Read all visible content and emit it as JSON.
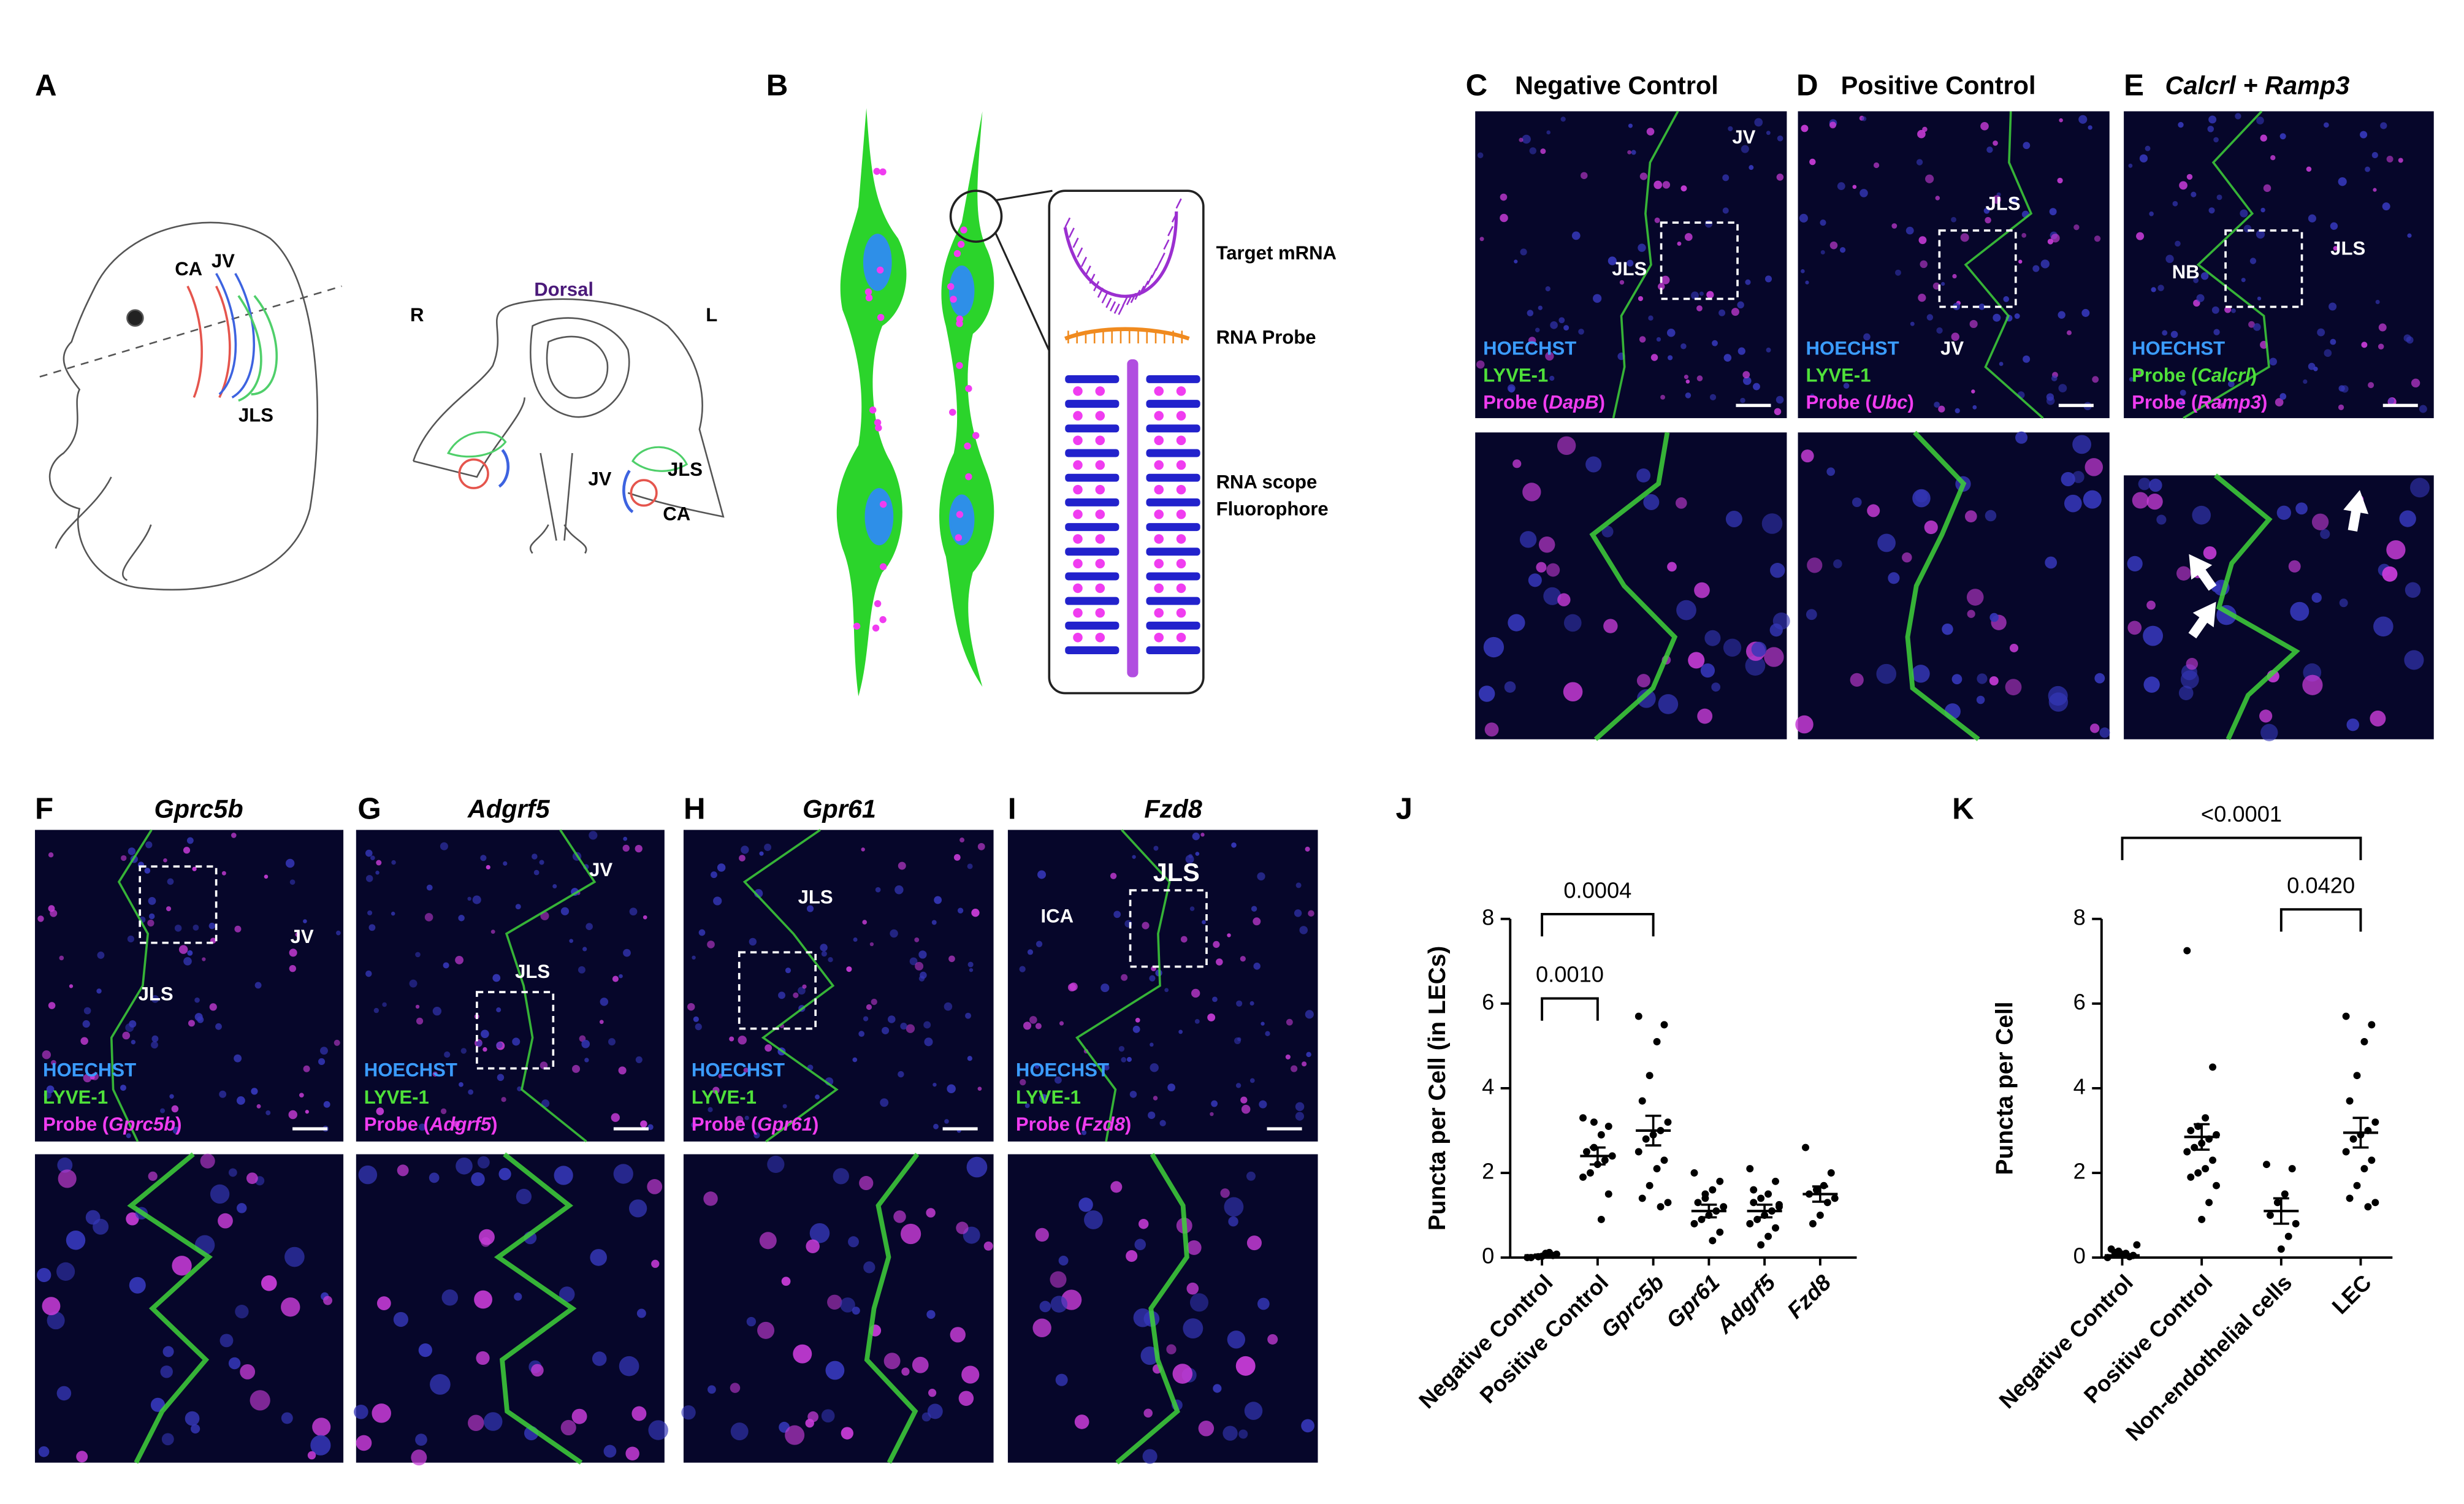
{
  "letters": [
    "A",
    "B",
    "C",
    "D",
    "E",
    "F",
    "G",
    "H",
    "I",
    "J",
    "K"
  ],
  "diagram_a": {
    "embryo": [
      "CA",
      "JV",
      "JLS"
    ],
    "section": [
      "R",
      "Dorsal",
      "L",
      "JV",
      "JLS",
      "CA"
    ]
  },
  "diagram_b": {
    "labels": [
      "Target mRNA",
      "RNA Probe",
      [
        "RNA scope",
        "Fluorophore"
      ]
    ]
  },
  "images": [
    {
      "title": "Negative Control",
      "title_italic": false,
      "labels": [
        "JV",
        "JLS"
      ],
      "legend": [
        {
          "text": [
            "HOECHST"
          ],
          "color": "#3b9cff"
        },
        {
          "text": [
            "LYVE-1"
          ],
          "color": "#4fe03a"
        },
        {
          "text": [
            "Probe (",
            "DapB",
            ")"
          ],
          "color": "#f03cf0"
        }
      ]
    },
    {
      "title": "Positive Control",
      "title_italic": false,
      "labels": [
        "JLS",
        "JV"
      ],
      "legend": [
        {
          "text": [
            "HOECHST"
          ],
          "color": "#3b9cff"
        },
        {
          "text": [
            "LYVE-1"
          ],
          "color": "#4fe03a"
        },
        {
          "text": [
            "Probe (",
            "Ubc",
            ")"
          ],
          "color": "#f03cf0"
        }
      ]
    },
    {
      "title": "Calcrl + Ramp3",
      "title_italic": true,
      "labels": [
        "JLS",
        "NB"
      ],
      "legend": [
        {
          "text": [
            "HOECHST"
          ],
          "color": "#3b9cff"
        },
        {
          "text": [
            "Probe (",
            "Calcrl",
            ")"
          ],
          "color": "#4fe03a"
        },
        {
          "text": [
            "Probe (",
            "Ramp3",
            ")"
          ],
          "color": "#f03cf0"
        }
      ]
    },
    {
      "title": "Gprc5b",
      "title_italic": true,
      "labels": [
        "JV",
        "JLS"
      ],
      "legend": [
        {
          "text": [
            "HOECHST"
          ],
          "color": "#3b9cff"
        },
        {
          "text": [
            "LYVE-1"
          ],
          "color": "#4fe03a"
        },
        {
          "text": [
            "Probe (",
            "Gprc5b",
            ")"
          ],
          "color": "#f03cf0"
        }
      ]
    },
    {
      "title": "Adgrf5",
      "title_italic": true,
      "labels": [
        "JV",
        "JLS"
      ],
      "legend": [
        {
          "text": [
            "HOECHST"
          ],
          "color": "#3b9cff"
        },
        {
          "text": [
            "LYVE-1"
          ],
          "color": "#4fe03a"
        },
        {
          "text": [
            "Probe (",
            "Adgrf5",
            ")"
          ],
          "color": "#f03cf0"
        }
      ]
    },
    {
      "title": "Gpr61",
      "title_italic": true,
      "labels": [
        "JLS"
      ],
      "legend": [
        {
          "text": [
            "HOECHST"
          ],
          "color": "#3b9cff"
        },
        {
          "text": [
            "LYVE-1"
          ],
          "color": "#4fe03a"
        },
        {
          "text": [
            "Probe (",
            "Gpr61",
            ")"
          ],
          "color": "#f03cf0"
        }
      ]
    },
    {
      "title": "Fzd8",
      "title_italic": true,
      "labels": [
        "ICA",
        "JLS"
      ],
      "legend": [
        {
          "text": [
            "HOECHST"
          ],
          "color": "#3b9cff"
        },
        {
          "text": [
            "LYVE-1"
          ],
          "color": "#4fe03a"
        },
        {
          "text": [
            "Probe (",
            "Fzd8",
            ")"
          ],
          "color": "#f03cf0"
        }
      ]
    }
  ],
  "chart_data": [
    {
      "type": "dot",
      "ylabel": "Puncta per Cell (in LECs)",
      "categories": [
        "Negative Control",
        "Positive Control",
        "Gprc5b",
        "Gpr61",
        "Adgrf5",
        "Fzd8"
      ],
      "italic": [
        false,
        false,
        true,
        true,
        true,
        true
      ],
      "points": [
        [
          0,
          0.05,
          0.1,
          0.02,
          0,
          0.08,
          0.12,
          0.03
        ],
        [
          3.3,
          3.1,
          2.9,
          2.6,
          2.5,
          2.4,
          2.3,
          2.2,
          2.0,
          1.9,
          1.5,
          0.9,
          3.2
        ],
        [
          5.7,
          5.5,
          5.1,
          4.3,
          3.7,
          3.2,
          3.0,
          2.9,
          2.8,
          2.5,
          2.3,
          2.1,
          1.7,
          1.4,
          1.3,
          1.2
        ],
        [
          2.0,
          1.8,
          1.6,
          1.4,
          1.3,
          1.2,
          1.1,
          1.0,
          0.9,
          0.8,
          0.6,
          0.4,
          1.5
        ],
        [
          2.1,
          1.8,
          1.5,
          1.4,
          1.3,
          1.2,
          1.1,
          1.0,
          0.9,
          0.8,
          0.7,
          0.5,
          0.3,
          1.6,
          1.25
        ],
        [
          2.6,
          2.0,
          1.7,
          1.6,
          1.5,
          1.4,
          1.3,
          1.0,
          0.8
        ]
      ],
      "means": [
        0.05,
        2.4,
        3.0,
        1.1,
        1.1,
        1.5
      ],
      "errors": [
        0.02,
        0.2,
        0.35,
        0.15,
        0.15,
        0.18
      ],
      "comparisons": [
        {
          "between": [
            0,
            1
          ],
          "label": "0.0010"
        },
        {
          "between": [
            0,
            2
          ],
          "label": "0.0004"
        }
      ],
      "ylim": [
        0,
        8
      ],
      "yticks": [
        0,
        2,
        4,
        6,
        8
      ]
    },
    {
      "type": "dot",
      "ylabel": "Puncta per Cell",
      "categories": [
        "Negative Control",
        "Positive Control",
        "Non-endothelial cells",
        "LEC"
      ],
      "italic": [
        false,
        false,
        false,
        false
      ],
      "points": [
        [
          0,
          0.05,
          0.1,
          0.15,
          0.2,
          0.3,
          0.02,
          0.08,
          0.12
        ],
        [
          7.25,
          4.5,
          3.3,
          3.1,
          3.0,
          2.9,
          2.8,
          2.7,
          2.6,
          2.5,
          2.3,
          2.1,
          2.0,
          1.9,
          1.7,
          1.3,
          0.9
        ],
        [
          2.2,
          2.1,
          1.5,
          1.3,
          1.0,
          0.8,
          0.5,
          0.2
        ],
        [
          5.7,
          5.5,
          5.1,
          4.3,
          3.7,
          3.2,
          3.0,
          2.9,
          2.8,
          2.5,
          2.3,
          2.1,
          1.7,
          1.4,
          1.3,
          1.2
        ]
      ],
      "means": [
        0.05,
        2.85,
        1.1,
        2.95
      ],
      "errors": [
        0.03,
        0.3,
        0.3,
        0.35
      ],
      "comparisons": [
        {
          "between": [
            0,
            3
          ],
          "label": "<0.0001"
        },
        {
          "between": [
            2,
            3
          ],
          "label": "0.0420"
        }
      ],
      "ylim": [
        0,
        8
      ],
      "yticks": [
        0,
        2,
        4,
        6,
        8
      ]
    }
  ]
}
